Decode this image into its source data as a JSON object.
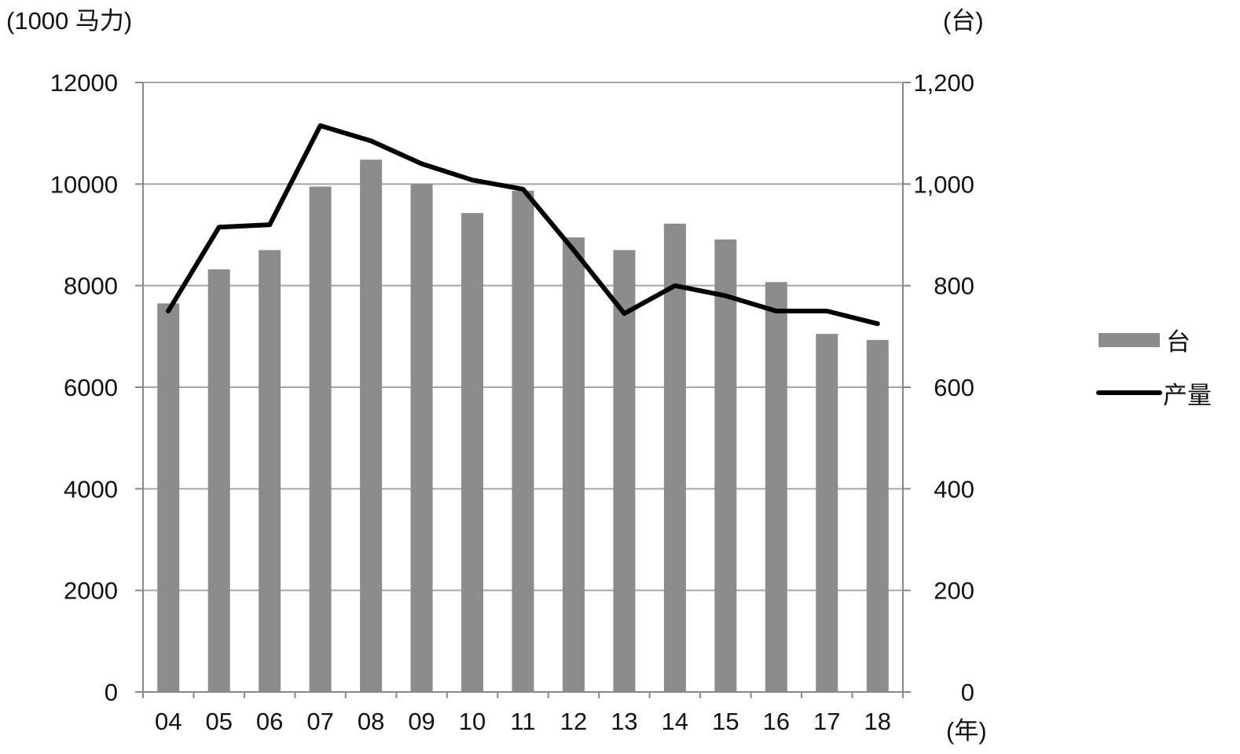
{
  "chart_data": {
    "type": "bar+line",
    "categories": [
      "04",
      "05",
      "06",
      "07",
      "08",
      "09",
      "10",
      "11",
      "12",
      "13",
      "14",
      "15",
      "16",
      "17",
      "18"
    ],
    "series": [
      {
        "name": "台",
        "type": "bar",
        "axis": "left",
        "values": [
          7650,
          8320,
          8700,
          9950,
          10480,
          10000,
          9430,
          9870,
          8950,
          8700,
          9220,
          8910,
          8070,
          7050,
          6930
        ]
      },
      {
        "name": "产量",
        "type": "line",
        "axis": "right",
        "values": [
          750,
          915,
          920,
          1115,
          1085,
          1040,
          1008,
          990,
          870,
          745,
          800,
          780,
          750,
          750,
          725
        ]
      }
    ],
    "left_axis": {
      "unit_label": "(1000 马力)",
      "ylim": [
        0,
        12000
      ],
      "ticks": [
        0,
        2000,
        4000,
        6000,
        8000,
        10000,
        12000
      ],
      "tick_labels": [
        "0",
        "2000",
        "4000",
        "6000",
        "8000",
        "10000",
        "12000"
      ]
    },
    "right_axis": {
      "unit_label": "(台)",
      "ylim": [
        0,
        1200
      ],
      "ticks": [
        0,
        200,
        400,
        600,
        800,
        1000,
        1200
      ],
      "tick_labels": [
        "0",
        "200",
        "400",
        "600",
        "800",
        "1,000",
        "1,200"
      ]
    },
    "x_axis": {
      "unit_label": "(年)"
    },
    "grid": true,
    "legend_position": "right",
    "colors": {
      "bar": "#8c8c8c",
      "line": "#000000",
      "grid": "#a6a6a6",
      "axis": "#888888"
    }
  }
}
